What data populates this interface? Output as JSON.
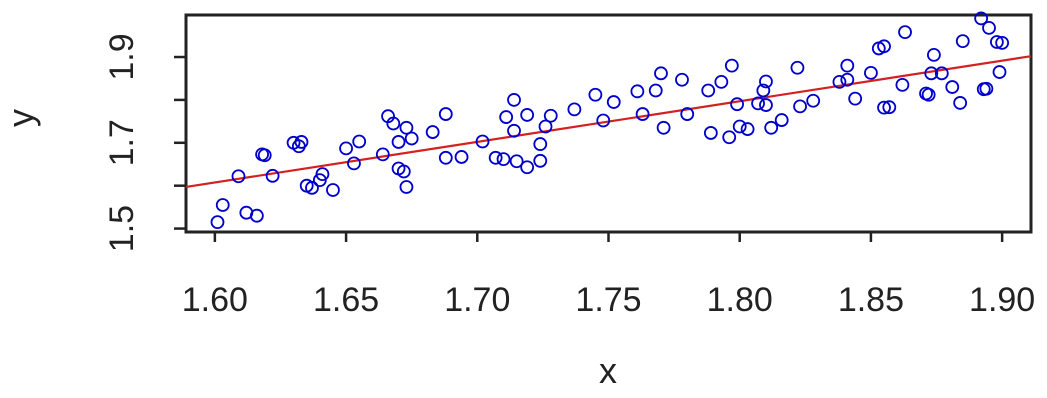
{
  "chart_data": {
    "type": "scatter",
    "xlabel": "x",
    "ylabel": "y",
    "xlim": [
      1.589,
      1.911
    ],
    "ylim": [
      1.492,
      1.998
    ],
    "x_ticks": [
      1.6,
      1.65,
      1.7,
      1.75,
      1.8,
      1.85,
      1.9
    ],
    "x_tick_labels": [
      "1.60",
      "1.65",
      "1.70",
      "1.75",
      "1.80",
      "1.85",
      "1.90"
    ],
    "y_ticks": [
      1.5,
      1.7,
      1.9
    ],
    "y_tick_labels": [
      "1.5",
      "1.7",
      "1.9"
    ],
    "y_minor_ticks": [
      1.6,
      1.8
    ],
    "grid": false,
    "colors": {
      "points": "#0000cc",
      "fit_line": "#d42020",
      "axis": "#222222"
    },
    "series": [
      {
        "marker": "open-circle",
        "points": [
          [
            1.601,
            1.515
          ],
          [
            1.603,
            1.555
          ],
          [
            1.609,
            1.622
          ],
          [
            1.612,
            1.537
          ],
          [
            1.616,
            1.53
          ],
          [
            1.618,
            1.673
          ],
          [
            1.619,
            1.671
          ],
          [
            1.622,
            1.623
          ],
          [
            1.63,
            1.7
          ],
          [
            1.632,
            1.692
          ],
          [
            1.633,
            1.702
          ],
          [
            1.635,
            1.6
          ],
          [
            1.637,
            1.595
          ],
          [
            1.64,
            1.613
          ],
          [
            1.641,
            1.627
          ],
          [
            1.645,
            1.59
          ],
          [
            1.65,
            1.687
          ],
          [
            1.653,
            1.652
          ],
          [
            1.655,
            1.703
          ],
          [
            1.664,
            1.673
          ],
          [
            1.666,
            1.762
          ],
          [
            1.668,
            1.745
          ],
          [
            1.67,
            1.702
          ],
          [
            1.67,
            1.64
          ],
          [
            1.672,
            1.633
          ],
          [
            1.673,
            1.735
          ],
          [
            1.673,
            1.597
          ],
          [
            1.675,
            1.71
          ],
          [
            1.683,
            1.725
          ],
          [
            1.688,
            1.767
          ],
          [
            1.688,
            1.665
          ],
          [
            1.694,
            1.667
          ],
          [
            1.702,
            1.703
          ],
          [
            1.707,
            1.665
          ],
          [
            1.71,
            1.662
          ],
          [
            1.711,
            1.76
          ],
          [
            1.714,
            1.8
          ],
          [
            1.714,
            1.728
          ],
          [
            1.715,
            1.657
          ],
          [
            1.719,
            1.765
          ],
          [
            1.719,
            1.643
          ],
          [
            1.724,
            1.697
          ],
          [
            1.724,
            1.658
          ],
          [
            1.726,
            1.738
          ],
          [
            1.728,
            1.763
          ],
          [
            1.737,
            1.778
          ],
          [
            1.745,
            1.812
          ],
          [
            1.748,
            1.752
          ],
          [
            1.752,
            1.795
          ],
          [
            1.761,
            1.82
          ],
          [
            1.763,
            1.767
          ],
          [
            1.768,
            1.822
          ],
          [
            1.77,
            1.862
          ],
          [
            1.771,
            1.735
          ],
          [
            1.778,
            1.847
          ],
          [
            1.78,
            1.767
          ],
          [
            1.788,
            1.822
          ],
          [
            1.789,
            1.723
          ],
          [
            1.793,
            1.842
          ],
          [
            1.797,
            1.88
          ],
          [
            1.796,
            1.713
          ],
          [
            1.799,
            1.79
          ],
          [
            1.8,
            1.738
          ],
          [
            1.803,
            1.732
          ],
          [
            1.807,
            1.792
          ],
          [
            1.809,
            1.822
          ],
          [
            1.81,
            1.843
          ],
          [
            1.81,
            1.788
          ],
          [
            1.812,
            1.735
          ],
          [
            1.816,
            1.753
          ],
          [
            1.822,
            1.875
          ],
          [
            1.823,
            1.785
          ],
          [
            1.828,
            1.798
          ],
          [
            1.838,
            1.842
          ],
          [
            1.841,
            1.88
          ],
          [
            1.841,
            1.847
          ],
          [
            1.844,
            1.803
          ],
          [
            1.85,
            1.863
          ],
          [
            1.853,
            1.92
          ],
          [
            1.855,
            1.925
          ],
          [
            1.855,
            1.782
          ],
          [
            1.857,
            1.783
          ],
          [
            1.862,
            1.835
          ],
          [
            1.863,
            1.958
          ],
          [
            1.871,
            1.815
          ],
          [
            1.872,
            1.812
          ],
          [
            1.873,
            1.862
          ],
          [
            1.874,
            1.905
          ],
          [
            1.877,
            1.862
          ],
          [
            1.881,
            1.83
          ],
          [
            1.884,
            1.793
          ],
          [
            1.885,
            1.937
          ],
          [
            1.892,
            1.99
          ],
          [
            1.893,
            1.825
          ],
          [
            1.894,
            1.826
          ],
          [
            1.895,
            1.968
          ],
          [
            1.898,
            1.935
          ],
          [
            1.899,
            1.865
          ],
          [
            1.9,
            1.933
          ]
        ]
      }
    ],
    "fit_line": {
      "x": [
        1.589,
        1.911
      ],
      "y": [
        1.597,
        1.902
      ]
    }
  }
}
